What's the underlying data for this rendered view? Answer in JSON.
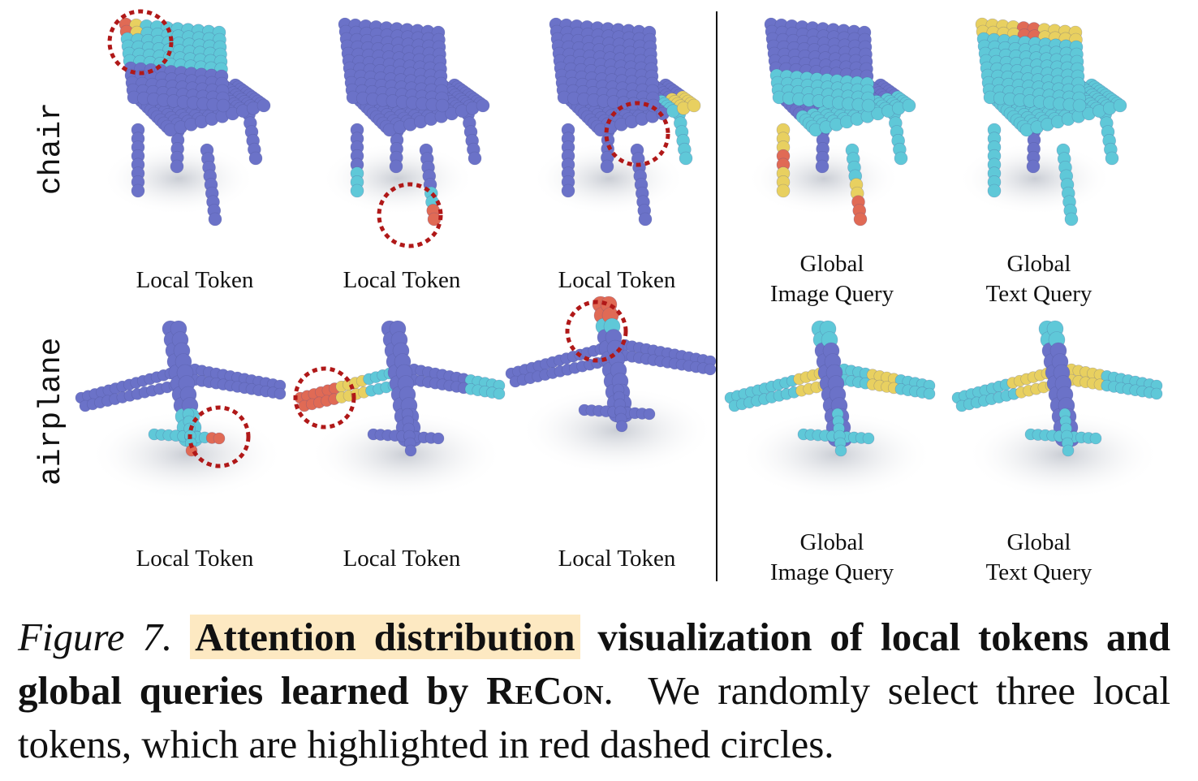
{
  "figure": {
    "row_labels": [
      "chair",
      "airplane"
    ],
    "rows": [
      {
        "object": "chair",
        "panels": [
          {
            "caption_lines": [
              "Local Token"
            ]
          },
          {
            "caption_lines": [
              "Local Token"
            ]
          },
          {
            "caption_lines": [
              "Local Token"
            ]
          },
          {
            "caption_lines": [
              "Global",
              "Image Query"
            ]
          },
          {
            "caption_lines": [
              "Global",
              "Text Query"
            ]
          }
        ]
      },
      {
        "object": "airplane",
        "panels": [
          {
            "caption_lines": [
              "Local Token"
            ]
          },
          {
            "caption_lines": [
              "Local Token"
            ]
          },
          {
            "caption_lines": [
              "Local Token"
            ]
          },
          {
            "caption_lines": [
              "Global",
              "Image Query"
            ]
          },
          {
            "caption_lines": [
              "Global",
              "Text Query"
            ]
          }
        ]
      }
    ],
    "colors": {
      "base_point": "#6b72c8",
      "low_attention": "#5fc8d8",
      "mid_attention": "#e8d060",
      "high_attention": "#e06a55",
      "highlight_circle": "#b01818"
    }
  },
  "caption": {
    "figure_label": "Figure 7.",
    "highlighted": "Attention distribution",
    "bold_rest": "visualization of local tokens and global queries learned by",
    "method": "ReCon",
    "period": ".",
    "plain": "We randomly select three local tokens, which are highlighted in red dashed circles."
  }
}
